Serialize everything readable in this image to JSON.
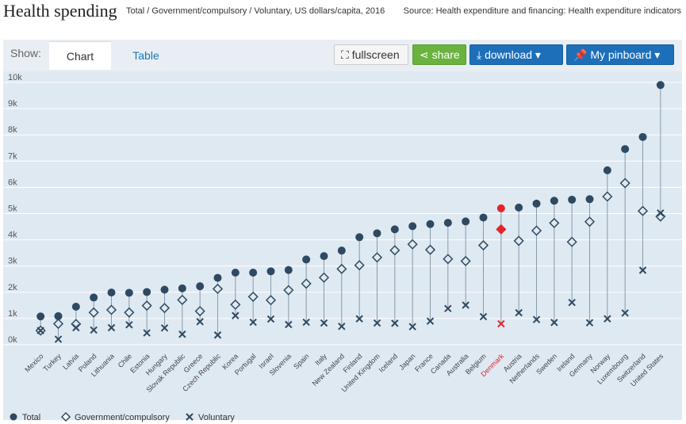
{
  "header": {
    "title": "Health spending",
    "subtitle": "Total / Government/compulsory / Voluntary, US dollars/capita, 2016",
    "source": "Source: Health expenditure and financing: Health expenditure indicators"
  },
  "toolbar": {
    "show_label": "Show:",
    "tab_chart": "Chart",
    "tab_table": "Table",
    "fullscreen": "fullscreen",
    "share": "share",
    "download": "download ▾",
    "pinboard": "My pinboard ▾"
  },
  "colors": {
    "total": "#2e4a62",
    "gov": "#2e4a62",
    "vol": "#2e4a62",
    "highlight": "#e3242b"
  },
  "legend": {
    "total": "Total",
    "gov": "Government/compulsory",
    "vol": "Voluntary"
  },
  "chart_data": {
    "type": "scatter",
    "title": "Health spending",
    "ylabel": "US dollars/capita",
    "ylim": [
      0,
      10000
    ],
    "yticks": [
      "0k",
      "1k",
      "2k",
      "3k",
      "4k",
      "5k",
      "6k",
      "7k",
      "8k",
      "9k",
      "10k"
    ],
    "highlight": "Denmark",
    "categories": [
      "Mexico",
      "Turkey",
      "Latvia",
      "Poland",
      "Lithuania",
      "Chile",
      "Estonia",
      "Hungary",
      "Slovak Republic",
      "Greece",
      "Czech Republic",
      "Korea",
      "Portugal",
      "Israel",
      "Slovenia",
      "Spain",
      "Italy",
      "New Zealand",
      "Finland",
      "United Kingdom",
      "Iceland",
      "Japan",
      "France",
      "Canada",
      "Australia",
      "Belgium",
      "Denmark",
      "Austria",
      "Netherlands",
      "Sweden",
      "Ireland",
      "Germany",
      "Norway",
      "Luxembourg",
      "Switzerland",
      "United States"
    ],
    "series": [
      {
        "name": "Total",
        "values": [
          1080,
          1090,
          1450,
          1800,
          1990,
          1980,
          2010,
          2100,
          2150,
          2230,
          2550,
          2750,
          2750,
          2800,
          2850,
          3250,
          3380,
          3590,
          4100,
          4250,
          4400,
          4520,
          4600,
          4650,
          4700,
          4850,
          5200,
          5230,
          5380,
          5490,
          5530,
          5550,
          6650,
          7460,
          7920,
          9900
        ]
      },
      {
        "name": "Government/compulsory",
        "values": [
          540,
          800,
          790,
          1230,
          1330,
          1230,
          1490,
          1400,
          1710,
          1280,
          2130,
          1530,
          1830,
          1700,
          2080,
          2330,
          2560,
          2890,
          3030,
          3330,
          3600,
          3830,
          3620,
          3270,
          3190,
          3790,
          4400,
          3960,
          4350,
          4640,
          3920,
          4690,
          5650,
          6160,
          5100,
          4890
        ]
      },
      {
        "name": "Voluntary",
        "values": [
          540,
          210,
          650,
          560,
          650,
          760,
          450,
          640,
          400,
          880,
          370,
          1110,
          860,
          980,
          770,
          860,
          830,
          700,
          990,
          830,
          820,
          690,
          900,
          1380,
          1510,
          1070,
          800,
          1220,
          960,
          850,
          1610,
          840,
          990,
          1210,
          2840,
          5020
        ]
      }
    ]
  }
}
